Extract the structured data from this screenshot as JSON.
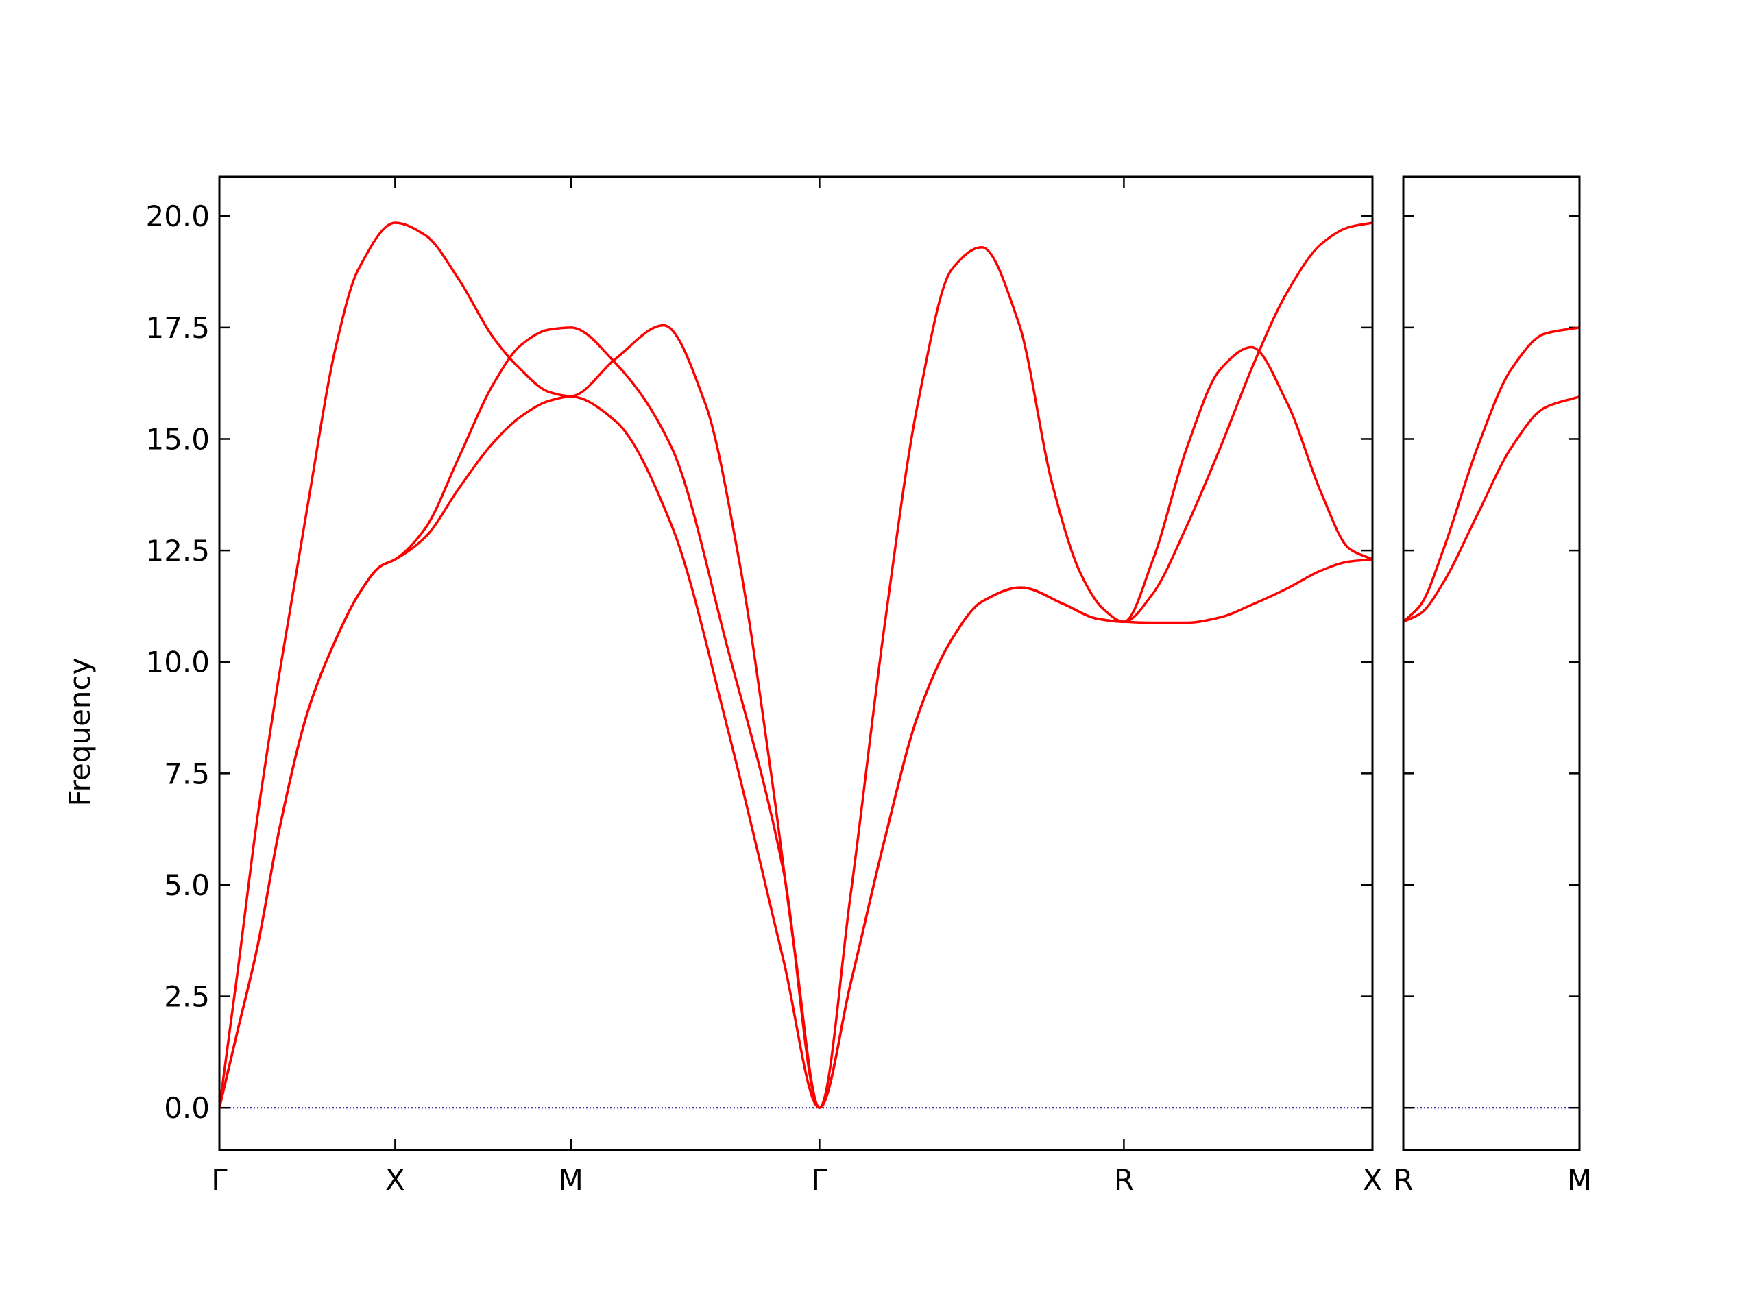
{
  "chart_data": [
    {
      "type": "line",
      "ylabel": "Frequency",
      "color": "#ff0000",
      "xlim": [
        0,
        3.2802
      ],
      "ylim": [
        -0.95,
        20.88
      ],
      "xticks": [
        {
          "value": 0,
          "label": "Γ"
        },
        {
          "value": 0.5,
          "label": "X"
        },
        {
          "value": 1.0,
          "label": "M"
        },
        {
          "value": 1.7071,
          "label": "Γ"
        },
        {
          "value": 2.5731,
          "label": "R"
        },
        {
          "value": 3.2802,
          "label": "X"
        }
      ],
      "yticks": [
        {
          "value": 0,
          "label": "0.0"
        },
        {
          "value": 2.5,
          "label": "2.5"
        },
        {
          "value": 5,
          "label": "5.0"
        },
        {
          "value": 7.5,
          "label": "7.5"
        },
        {
          "value": 10,
          "label": "10.0"
        },
        {
          "value": 12.5,
          "label": "12.5"
        },
        {
          "value": 15,
          "label": "15.0"
        },
        {
          "value": 17.5,
          "label": "17.5"
        },
        {
          "value": 20,
          "label": "20.0"
        }
      ],
      "ytick_labels": true,
      "hline": 0,
      "hline_color": "#00008b",
      "series": [
        {
          "x": [
            0,
            0.051,
            0.108,
            0.172,
            0.252,
            0.331,
            0.395,
            0.5,
            0.586,
            0.682,
            0.777,
            0.857,
            0.936,
            1.0,
            1.127,
            1.264,
            1.382,
            1.478,
            1.573,
            1.637,
            1.7071,
            1.796,
            1.892,
            1.987,
            2.083,
            2.169,
            2.274,
            2.369,
            2.449,
            2.513,
            2.5731,
            2.656,
            2.752,
            2.847,
            2.943,
            3.038,
            3.134,
            3.213,
            3.2802
          ],
          "values": [
            0,
            3.0,
            6.5,
            9.8,
            13.55,
            17.06,
            18.8,
            19.85,
            19.57,
            18.57,
            17.3,
            16.56,
            16.06,
            15.96,
            16.8,
            17.55,
            15.8,
            12.3,
            7.3,
            3.5,
            0,
            4.8,
            10.8,
            15.8,
            18.8,
            19.3,
            17.6,
            14.0,
            12.0,
            11.2,
            10.9,
            11.54,
            13.05,
            14.8,
            16.7,
            18.3,
            19.37,
            19.75,
            19.85
          ]
        },
        {
          "x": [
            0,
            0.051,
            0.108,
            0.172,
            0.252,
            0.331,
            0.395,
            0.459,
            0.5,
            0.586,
            0.682,
            0.777,
            0.857,
            0.936,
            1.0,
            1.127,
            1.287,
            1.446,
            1.605,
            1.7071,
            1.796,
            1.892,
            1.987,
            2.083,
            2.169,
            2.28,
            2.401,
            2.497,
            2.5731,
            2.656,
            2.752,
            2.847,
            2.936,
            3.038,
            3.134,
            3.213,
            3.2802
          ],
          "values": [
            0,
            1.7,
            3.6,
            6.3,
            8.9,
            10.5,
            11.5,
            12.15,
            12.3,
            13.0,
            14.6,
            16.2,
            17.1,
            17.45,
            17.5,
            16.7,
            14.8,
            10.3,
            5.3,
            0,
            2.8,
            6.0,
            8.8,
            10.5,
            11.35,
            11.67,
            11.3,
            10.97,
            10.9,
            12.3,
            14.8,
            16.56,
            17.06,
            15.8,
            13.8,
            12.55,
            12.3
          ]
        },
        {
          "x": [
            0,
            0.051,
            0.108,
            0.172,
            0.252,
            0.331,
            0.395,
            0.459,
            0.5,
            0.586,
            0.682,
            0.777,
            0.857,
            0.936,
            1.0,
            1.127,
            1.287,
            1.446,
            1.605,
            1.7071,
            1.796,
            1.892,
            1.987,
            2.083,
            2.169,
            2.28,
            2.401,
            2.497,
            2.5731,
            2.656,
            2.752,
            2.847,
            2.936,
            3.038,
            3.134,
            3.213,
            3.2802
          ],
          "values": [
            0,
            1.7,
            3.6,
            6.3,
            8.9,
            10.5,
            11.5,
            12.15,
            12.3,
            12.8,
            13.9,
            14.9,
            15.5,
            15.85,
            15.95,
            15.4,
            13.05,
            8.5,
            3.3,
            0,
            2.8,
            6.0,
            8.8,
            10.5,
            11.35,
            11.67,
            11.3,
            10.97,
            10.9,
            10.88,
            10.88,
            11.0,
            11.28,
            11.65,
            12.05,
            12.25,
            12.3
          ]
        }
      ]
    },
    {
      "type": "line",
      "color": "#ff0000",
      "xlim": [
        0,
        0.5
      ],
      "ylim": [
        -0.95,
        20.88
      ],
      "xticks": [
        {
          "value": 0,
          "label": "R"
        },
        {
          "value": 0.5,
          "label": "M"
        }
      ],
      "yticks": [
        0,
        2.5,
        5,
        7.5,
        10,
        12.5,
        15,
        17.5,
        20
      ],
      "ytick_labels": false,
      "hline": 0,
      "hline_color": "#00008b",
      "series": [
        {
          "x": [
            0,
            0.051,
            0.115,
            0.21,
            0.306,
            0.401,
            0.5
          ],
          "values": [
            10.9,
            11.3,
            12.55,
            14.8,
            16.56,
            17.36,
            17.5
          ]
        },
        {
          "x": [
            0,
            0.051,
            0.115,
            0.21,
            0.306,
            0.401,
            0.5
          ],
          "values": [
            10.9,
            11.1,
            11.8,
            13.3,
            14.8,
            15.7,
            15.95
          ]
        }
      ]
    }
  ]
}
